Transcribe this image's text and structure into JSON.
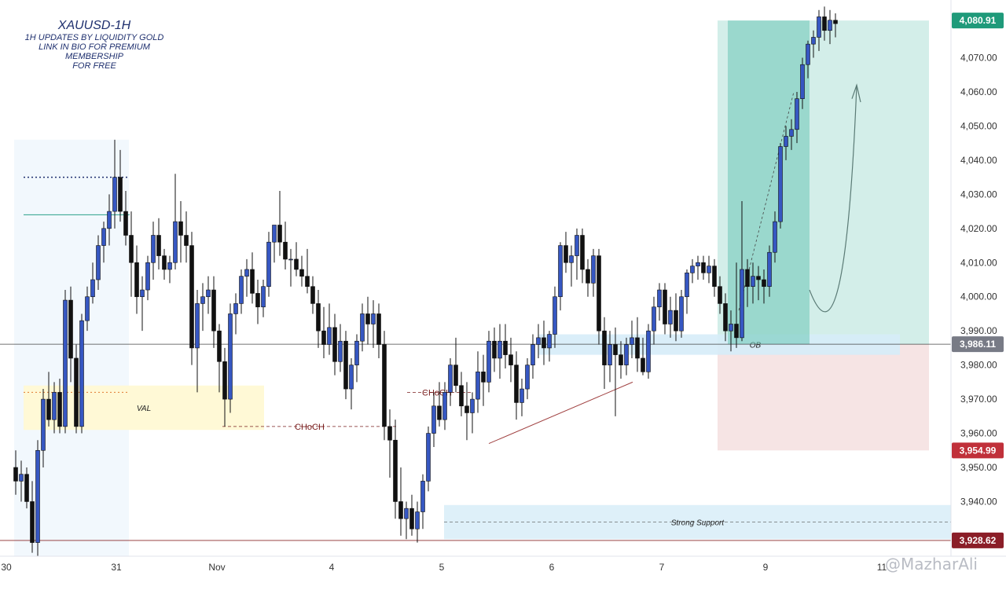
{
  "header": {
    "title": "XAUUSD-1H",
    "lines": [
      "1H UPDATES BY LIQUIDITY GOLD",
      "LINK IN BIO FOR PREMIUM MEMBERSHIP",
      "FOR FREE"
    ]
  },
  "watermark": "@MazharAli",
  "colors": {
    "bull": "#3657c2",
    "bear": "#111111",
    "target_zone": "#6cc7b7",
    "stop_zone": "#f2d8d8",
    "zone_blue": "#d6ecf8",
    "val_zone": "#fff9d6",
    "price_badge_green": "#1f9a7a",
    "price_badge_red": "#c0303a",
    "price_badge_gray": "#787b86",
    "choch_color": "#7a1f1f"
  },
  "chart_data": {
    "type": "candlestick",
    "symbol": "XAUUSD",
    "timeframe": "1H",
    "ylim": [
      3924,
      4086
    ],
    "y_ticks": [
      3940,
      3950,
      3960,
      3970,
      3980,
      3990,
      4000,
      4010,
      4020,
      4030,
      4040,
      4050,
      4060,
      4070
    ],
    "y_tick_labels": [
      "3,940.00",
      "3,950.00",
      "3,960.00",
      "3,970.00",
      "3,980.00",
      "3,990.00",
      "4,000.00",
      "4,010.00",
      "4,020.00",
      "4,030.00",
      "4,040.00",
      "4,050.00",
      "4,060.00",
      "4,070.00"
    ],
    "x_labels": [
      "30",
      "31",
      "Nov",
      "4",
      "5",
      "6",
      "7",
      "9",
      "11"
    ],
    "price_badges": [
      {
        "label": "4,080.91",
        "value": 4080.91,
        "kind": "green"
      },
      {
        "label": "3,986.11",
        "value": 3986.11,
        "kind": "gray"
      },
      {
        "label": "3,954.99",
        "value": 3954.99,
        "kind": "red"
      },
      {
        "label": "3,928.62",
        "value": 3928.62,
        "kind": "dark-red"
      }
    ],
    "candles": [
      {
        "o": 3950,
        "h": 3955,
        "l": 3942,
        "c": 3946
      },
      {
        "o": 3946,
        "h": 3952,
        "l": 3940,
        "c": 3948
      },
      {
        "o": 3948,
        "h": 3950,
        "l": 3938,
        "c": 3940
      },
      {
        "o": 3940,
        "h": 3946,
        "l": 3925,
        "c": 3928
      },
      {
        "o": 3928,
        "h": 3958,
        "l": 3924,
        "c": 3955
      },
      {
        "o": 3955,
        "h": 3973,
        "l": 3950,
        "c": 3970
      },
      {
        "o": 3970,
        "h": 3978,
        "l": 3962,
        "c": 3964
      },
      {
        "o": 3964,
        "h": 3975,
        "l": 3960,
        "c": 3972
      },
      {
        "o": 3972,
        "h": 3976,
        "l": 3960,
        "c": 3962
      },
      {
        "o": 3962,
        "h": 4002,
        "l": 3960,
        "c": 3999
      },
      {
        "o": 3999,
        "h": 4003,
        "l": 3975,
        "c": 3982
      },
      {
        "o": 3982,
        "h": 3986,
        "l": 3960,
        "c": 3962
      },
      {
        "o": 3962,
        "h": 3995,
        "l": 3960,
        "c": 3993
      },
      {
        "o": 3993,
        "h": 4003,
        "l": 3990,
        "c": 4000
      },
      {
        "o": 4000,
        "h": 4010,
        "l": 3998,
        "c": 4005
      },
      {
        "o": 4005,
        "h": 4018,
        "l": 4002,
        "c": 4015
      },
      {
        "o": 4015,
        "h": 4022,
        "l": 4010,
        "c": 4020
      },
      {
        "o": 4020,
        "h": 4030,
        "l": 4015,
        "c": 4025
      },
      {
        "o": 4025,
        "h": 4046,
        "l": 4020,
        "c": 4035
      },
      {
        "o": 4035,
        "h": 4043,
        "l": 4022,
        "c": 4025
      },
      {
        "o": 4025,
        "h": 4031,
        "l": 4015,
        "c": 4018
      },
      {
        "o": 4018,
        "h": 4025,
        "l": 4000,
        "c": 4010
      },
      {
        "o": 4010,
        "h": 4015,
        "l": 3995,
        "c": 4000
      },
      {
        "o": 4000,
        "h": 4006,
        "l": 3990,
        "c": 4002
      },
      {
        "o": 4002,
        "h": 4012,
        "l": 3999,
        "c": 4010
      },
      {
        "o": 4010,
        "h": 4022,
        "l": 4005,
        "c": 4018
      },
      {
        "o": 4018,
        "h": 4023,
        "l": 4008,
        "c": 4012
      },
      {
        "o": 4012,
        "h": 4014,
        "l": 4005,
        "c": 4008
      },
      {
        "o": 4008,
        "h": 4012,
        "l": 4004,
        "c": 4010
      },
      {
        "o": 4010,
        "h": 4036,
        "l": 4008,
        "c": 4022
      },
      {
        "o": 4022,
        "h": 4028,
        "l": 4010,
        "c": 4018
      },
      {
        "o": 4018,
        "h": 4025,
        "l": 4010,
        "c": 4015
      },
      {
        "o": 4015,
        "h": 4019,
        "l": 3980,
        "c": 3985
      },
      {
        "o": 3985,
        "h": 4002,
        "l": 3972,
        "c": 3998
      },
      {
        "o": 3998,
        "h": 4004,
        "l": 3990,
        "c": 4000
      },
      {
        "o": 4000,
        "h": 4006,
        "l": 3995,
        "c": 4002
      },
      {
        "o": 4002,
        "h": 4006,
        "l": 3985,
        "c": 3990
      },
      {
        "o": 3990,
        "h": 3992,
        "l": 3972,
        "c": 3981
      },
      {
        "o": 3981,
        "h": 3985,
        "l": 3962,
        "c": 3970
      },
      {
        "o": 3970,
        "h": 3998,
        "l": 3966,
        "c": 3995
      },
      {
        "o": 3995,
        "h": 4001,
        "l": 3989,
        "c": 3998
      },
      {
        "o": 3998,
        "h": 4008,
        "l": 3995,
        "c": 4006
      },
      {
        "o": 4006,
        "h": 4011,
        "l": 4000,
        "c": 4008
      },
      {
        "o": 4008,
        "h": 4013,
        "l": 3998,
        "c": 4001
      },
      {
        "o": 4001,
        "h": 4005,
        "l": 3992,
        "c": 3997
      },
      {
        "o": 3997,
        "h": 4005,
        "l": 3994,
        "c": 4003
      },
      {
        "o": 4003,
        "h": 4019,
        "l": 4000,
        "c": 4016
      },
      {
        "o": 4016,
        "h": 4021,
        "l": 4010,
        "c": 4021
      },
      {
        "o": 4021,
        "h": 4031,
        "l": 4012,
        "c": 4016
      },
      {
        "o": 4016,
        "h": 4022,
        "l": 4008,
        "c": 4011
      },
      {
        "o": 4011,
        "h": 4014,
        "l": 4003,
        "c": 4011
      },
      {
        "o": 4011,
        "h": 4016,
        "l": 4006,
        "c": 4008
      },
      {
        "o": 4008,
        "h": 4012,
        "l": 4003,
        "c": 4006
      },
      {
        "o": 4006,
        "h": 4014,
        "l": 4001,
        "c": 4003
      },
      {
        "o": 4003,
        "h": 4006,
        "l": 3995,
        "c": 3998
      },
      {
        "o": 3998,
        "h": 4002,
        "l": 3985,
        "c": 3990
      },
      {
        "o": 3990,
        "h": 3997,
        "l": 3982,
        "c": 3986
      },
      {
        "o": 3986,
        "h": 3998,
        "l": 3983,
        "c": 3991
      },
      {
        "o": 3991,
        "h": 3995,
        "l": 3977,
        "c": 3981
      },
      {
        "o": 3981,
        "h": 3992,
        "l": 3978,
        "c": 3987
      },
      {
        "o": 3987,
        "h": 3990,
        "l": 3970,
        "c": 3973
      },
      {
        "o": 3973,
        "h": 3982,
        "l": 3967,
        "c": 3980
      },
      {
        "o": 3980,
        "h": 3989,
        "l": 3975,
        "c": 3987
      },
      {
        "o": 3987,
        "h": 3998,
        "l": 3984,
        "c": 3995
      },
      {
        "o": 3995,
        "h": 4000,
        "l": 3986,
        "c": 3992
      },
      {
        "o": 3992,
        "h": 3999,
        "l": 3985,
        "c": 3995
      },
      {
        "o": 3995,
        "h": 3998,
        "l": 3982,
        "c": 3986
      },
      {
        "o": 3986,
        "h": 3990,
        "l": 3958,
        "c": 3962
      },
      {
        "o": 3962,
        "h": 3967,
        "l": 3947,
        "c": 3958
      },
      {
        "o": 3958,
        "h": 3964,
        "l": 3935,
        "c": 3940
      },
      {
        "o": 3940,
        "h": 3950,
        "l": 3930,
        "c": 3935
      },
      {
        "o": 3935,
        "h": 3940,
        "l": 3929,
        "c": 3938
      },
      {
        "o": 3938,
        "h": 3942,
        "l": 3930,
        "c": 3932
      },
      {
        "o": 3932,
        "h": 3940,
        "l": 3928,
        "c": 3937
      },
      {
        "o": 3937,
        "h": 3948,
        "l": 3932,
        "c": 3946
      },
      {
        "o": 3946,
        "h": 3962,
        "l": 3943,
        "c": 3960
      },
      {
        "o": 3960,
        "h": 3972,
        "l": 3956,
        "c": 3968
      },
      {
        "o": 3968,
        "h": 3975,
        "l": 3962,
        "c": 3964
      },
      {
        "o": 3964,
        "h": 3975,
        "l": 3961,
        "c": 3972
      },
      {
        "o": 3972,
        "h": 3982,
        "l": 3968,
        "c": 3980
      },
      {
        "o": 3980,
        "h": 3988,
        "l": 3972,
        "c": 3974
      },
      {
        "o": 3974,
        "h": 3978,
        "l": 3965,
        "c": 3968
      },
      {
        "o": 3968,
        "h": 3975,
        "l": 3958,
        "c": 3966
      },
      {
        "o": 3966,
        "h": 3972,
        "l": 3960,
        "c": 3970
      },
      {
        "o": 3970,
        "h": 3984,
        "l": 3966,
        "c": 3978
      },
      {
        "o": 3978,
        "h": 3983,
        "l": 3968,
        "c": 3975
      },
      {
        "o": 3975,
        "h": 3990,
        "l": 3972,
        "c": 3987
      },
      {
        "o": 3987,
        "h": 3991,
        "l": 3978,
        "c": 3982
      },
      {
        "o": 3982,
        "h": 3992,
        "l": 3976,
        "c": 3987
      },
      {
        "o": 3987,
        "h": 3992,
        "l": 3979,
        "c": 3983
      },
      {
        "o": 3983,
        "h": 3988,
        "l": 3975,
        "c": 3980
      },
      {
        "o": 3980,
        "h": 3984,
        "l": 3964,
        "c": 3969
      },
      {
        "o": 3969,
        "h": 3976,
        "l": 3965,
        "c": 3973
      },
      {
        "o": 3973,
        "h": 3982,
        "l": 3970,
        "c": 3980
      },
      {
        "o": 3980,
        "h": 3989,
        "l": 3976,
        "c": 3986
      },
      {
        "o": 3986,
        "h": 3992,
        "l": 3982,
        "c": 3988
      },
      {
        "o": 3988,
        "h": 3993,
        "l": 3980,
        "c": 3985
      },
      {
        "o": 3985,
        "h": 3990,
        "l": 3981,
        "c": 3989
      },
      {
        "o": 3989,
        "h": 4003,
        "l": 3985,
        "c": 4000
      },
      {
        "o": 4000,
        "h": 4016,
        "l": 3996,
        "c": 4015
      },
      {
        "o": 4015,
        "h": 4019,
        "l": 4007,
        "c": 4010
      },
      {
        "o": 4010,
        "h": 4015,
        "l": 4003,
        "c": 4012
      },
      {
        "o": 4012,
        "h": 4020,
        "l": 4005,
        "c": 4018
      },
      {
        "o": 4018,
        "h": 4020,
        "l": 4004,
        "c": 4008
      },
      {
        "o": 4008,
        "h": 4011,
        "l": 4000,
        "c": 4004
      },
      {
        "o": 4004,
        "h": 4014,
        "l": 4000,
        "c": 4012
      },
      {
        "o": 4012,
        "h": 4014,
        "l": 3986,
        "c": 3990
      },
      {
        "o": 3990,
        "h": 3994,
        "l": 3973,
        "c": 3980
      },
      {
        "o": 3980,
        "h": 3990,
        "l": 3975,
        "c": 3986
      },
      {
        "o": 3986,
        "h": 3991,
        "l": 3965,
        "c": 3983
      },
      {
        "o": 3983,
        "h": 3987,
        "l": 3976,
        "c": 3980
      },
      {
        "o": 3980,
        "h": 3988,
        "l": 3977,
        "c": 3986
      },
      {
        "o": 3986,
        "h": 3993,
        "l": 3982,
        "c": 3988
      },
      {
        "o": 3988,
        "h": 3994,
        "l": 3978,
        "c": 3982
      },
      {
        "o": 3982,
        "h": 3988,
        "l": 3977,
        "c": 3978
      },
      {
        "o": 3978,
        "h": 3992,
        "l": 3976,
        "c": 3990
      },
      {
        "o": 3990,
        "h": 4000,
        "l": 3986,
        "c": 3997
      },
      {
        "o": 3997,
        "h": 4004,
        "l": 3993,
        "c": 4002
      },
      {
        "o": 4002,
        "h": 4004,
        "l": 3989,
        "c": 3992
      },
      {
        "o": 3992,
        "h": 4000,
        "l": 3988,
        "c": 3996
      },
      {
        "o": 3996,
        "h": 4001,
        "l": 3987,
        "c": 3990
      },
      {
        "o": 3990,
        "h": 4002,
        "l": 3988,
        "c": 4000
      },
      {
        "o": 4000,
        "h": 4008,
        "l": 3995,
        "c": 4007
      },
      {
        "o": 4007,
        "h": 4011,
        "l": 4004,
        "c": 4009
      },
      {
        "o": 4009,
        "h": 4012,
        "l": 4005,
        "c": 4010
      },
      {
        "o": 4010,
        "h": 4012,
        "l": 4005,
        "c": 4007
      },
      {
        "o": 4007,
        "h": 4012,
        "l": 4004,
        "c": 4009
      },
      {
        "o": 4009,
        "h": 4011,
        "l": 4000,
        "c": 4003
      },
      {
        "o": 4003,
        "h": 4006,
        "l": 3995,
        "c": 3998
      },
      {
        "o": 3998,
        "h": 4001,
        "l": 3987,
        "c": 3990
      },
      {
        "o": 3990,
        "h": 3996,
        "l": 3984,
        "c": 3992
      },
      {
        "o": 3992,
        "h": 4010,
        "l": 3985,
        "c": 3988
      },
      {
        "o": 3988,
        "h": 4028,
        "l": 3987,
        "c": 4008
      },
      {
        "o": 4008,
        "h": 4011,
        "l": 3997,
        "c": 4003
      },
      {
        "o": 4003,
        "h": 4010,
        "l": 3998,
        "c": 4006
      },
      {
        "o": 4006,
        "h": 4009,
        "l": 3999,
        "c": 4005
      },
      {
        "o": 4005,
        "h": 4008,
        "l": 3998,
        "c": 4003
      },
      {
        "o": 4003,
        "h": 4015,
        "l": 4000,
        "c": 4013
      },
      {
        "o": 4013,
        "h": 4025,
        "l": 4010,
        "c": 4022
      },
      {
        "o": 4022,
        "h": 4045,
        "l": 4020,
        "c": 4044
      },
      {
        "o": 4044,
        "h": 4050,
        "l": 4040,
        "c": 4047
      },
      {
        "o": 4047,
        "h": 4052,
        "l": 4043,
        "c": 4049
      },
      {
        "o": 4049,
        "h": 4060,
        "l": 4045,
        "c": 4058
      },
      {
        "o": 4058,
        "h": 4070,
        "l": 4055,
        "c": 4068
      },
      {
        "o": 4068,
        "h": 4075,
        "l": 4064,
        "c": 4074
      },
      {
        "o": 4074,
        "h": 4078,
        "l": 4070,
        "c": 4076
      },
      {
        "o": 4076,
        "h": 4084,
        "l": 4072,
        "c": 4082
      },
      {
        "o": 4082,
        "h": 4085,
        "l": 4075,
        "c": 4078
      },
      {
        "o": 4078,
        "h": 4084,
        "l": 4074,
        "c": 4081
      },
      {
        "o": 4081,
        "h": 4083,
        "l": 4076,
        "c": 4080
      }
    ],
    "zones": [
      {
        "name": "target-zone",
        "label": "",
        "from": 3986.11,
        "to": 4080.91
      },
      {
        "name": "stop-zone",
        "label": "",
        "from": 3954.99,
        "to": 3986.11
      },
      {
        "name": "ob-zone",
        "label": "OB",
        "from": 3983,
        "to": 3989
      },
      {
        "name": "val-zone",
        "label": "VAL",
        "from": 3961,
        "to": 3974
      },
      {
        "name": "strong-support-zone",
        "label": "Strong Support",
        "from": 3929,
        "to": 3939
      }
    ],
    "annotations": [
      {
        "name": "choch-upper",
        "label": "CHoCH",
        "value": 3972
      },
      {
        "name": "choch-lower",
        "label": "CHoCH",
        "value": 3962
      }
    ],
    "grid": false
  }
}
